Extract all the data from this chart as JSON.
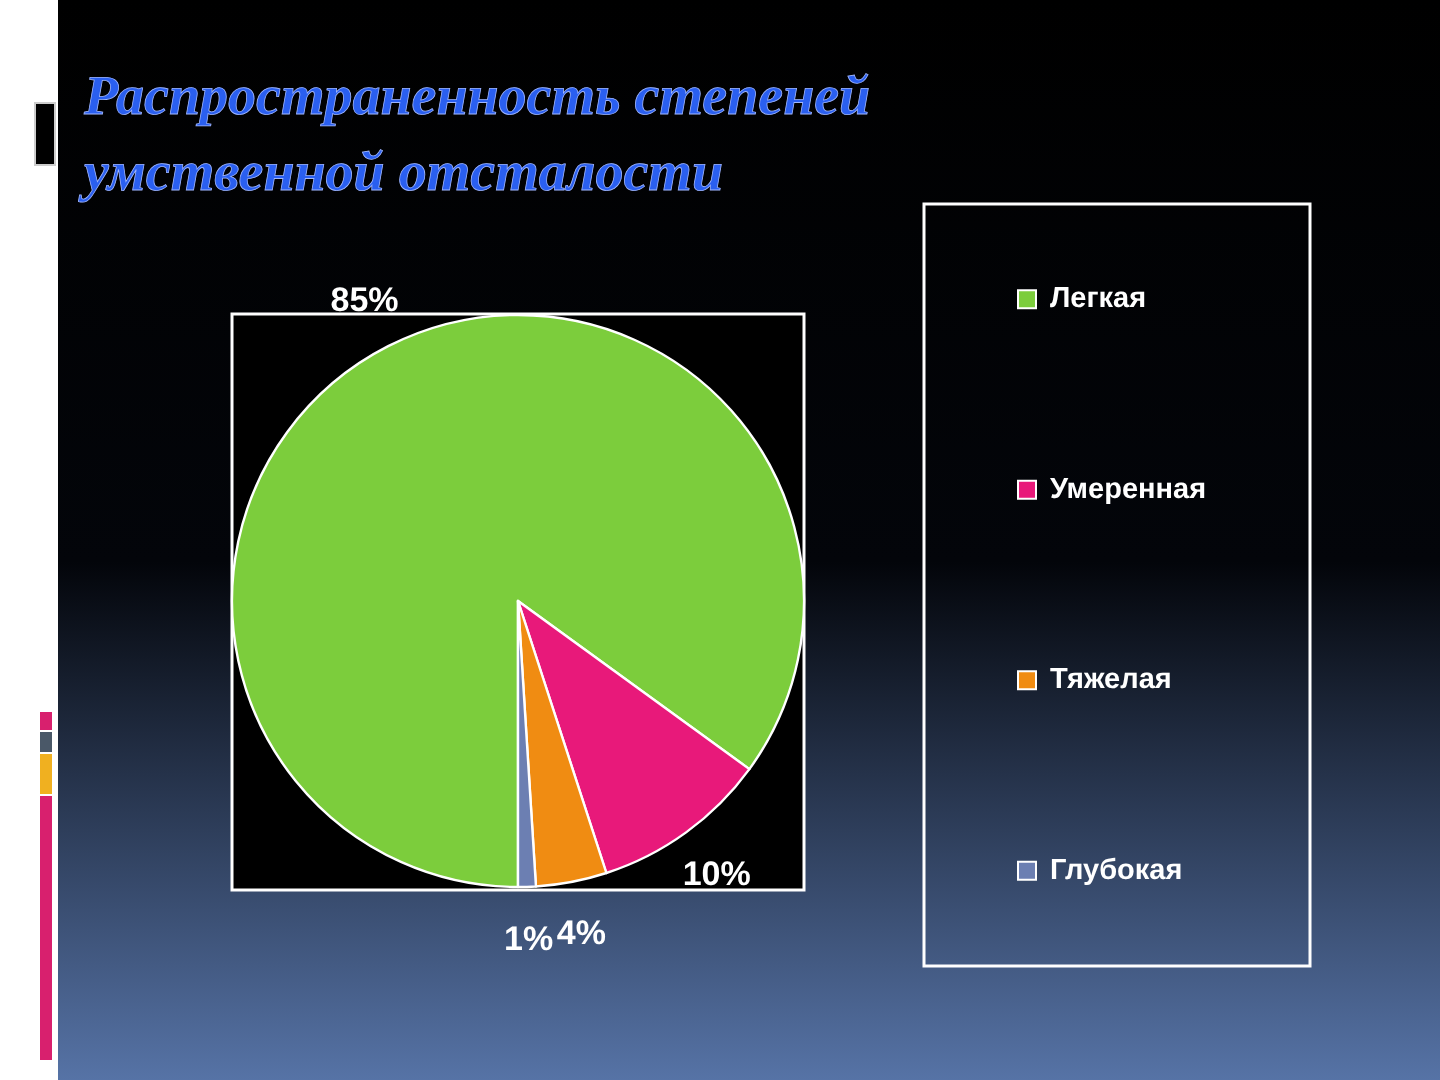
{
  "chart_data": {
    "type": "pie",
    "title": "Распространенность степеней умственной отсталости",
    "categories": [
      "Легкая",
      "Умеренная",
      "Тяжелая",
      "Глубокая"
    ],
    "values": [
      85,
      10,
      4,
      1
    ],
    "colors": [
      "#7ccd3c",
      "#e8197a",
      "#f08c12",
      "#6c7fb2"
    ],
    "value_labels": [
      "85%",
      "10%",
      "4%",
      "1%"
    ],
    "legend": "right"
  }
}
